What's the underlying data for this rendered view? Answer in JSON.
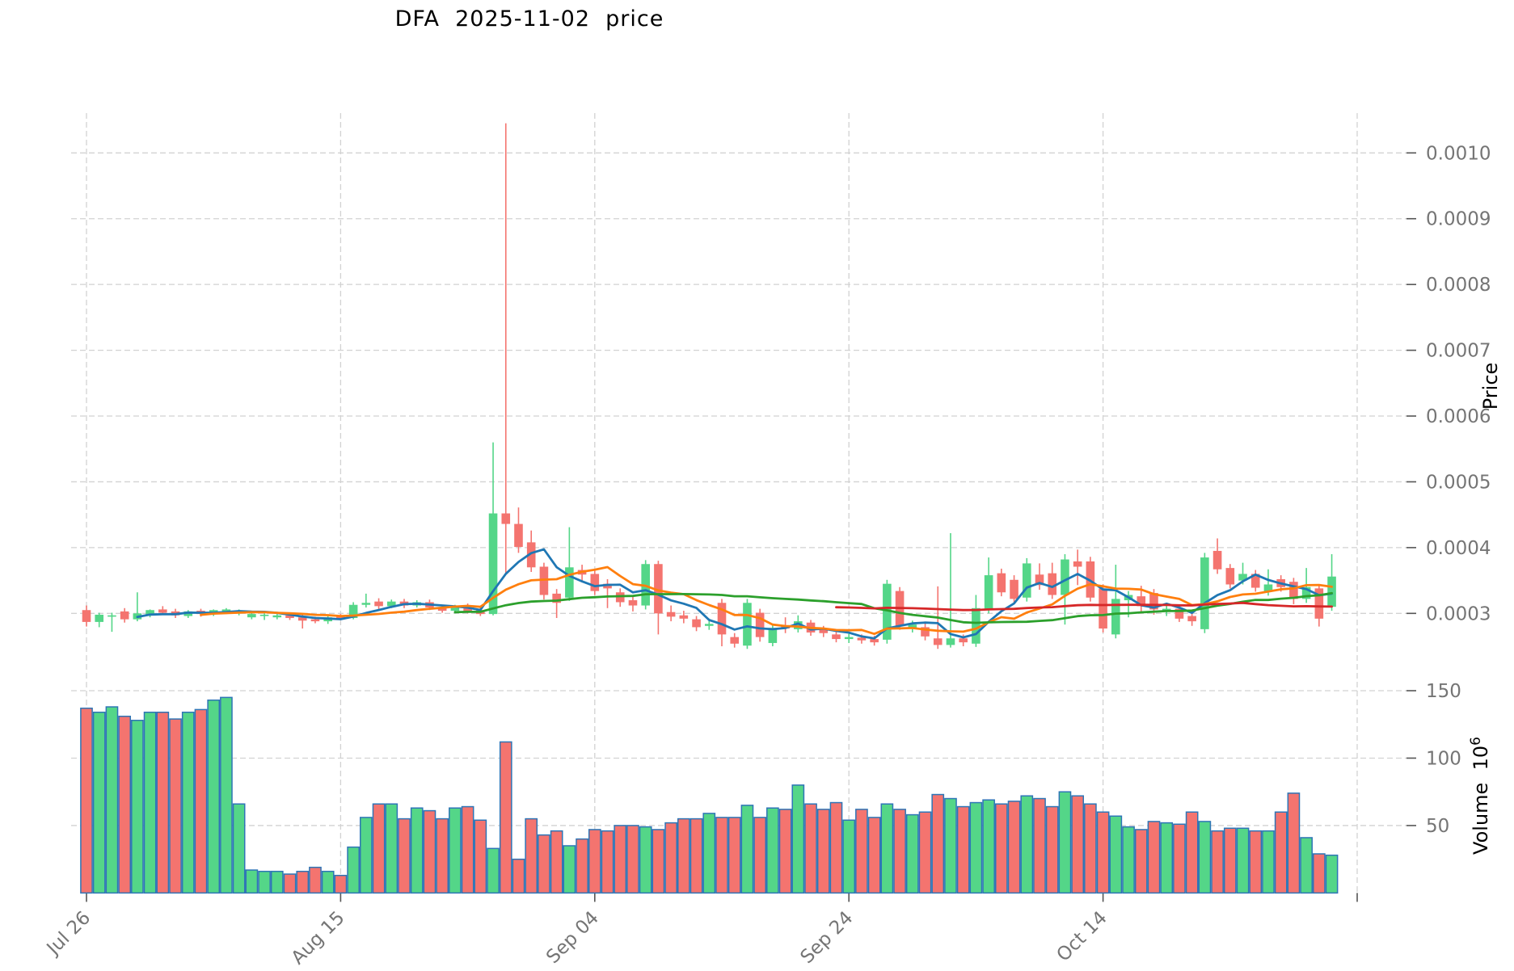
{
  "title": "DFA  2025-11-02  price",
  "axes": {
    "price": {
      "label": "Price",
      "tick_labels": [
        "0.0003",
        "0.0004",
        "0.0005",
        "0.0006",
        "0.0007",
        "0.0008",
        "0.0009",
        "0.0010"
      ]
    },
    "volume": {
      "label": "Volume",
      "unit_base": "10",
      "unit_exponent": "6",
      "tick_labels": [
        "50",
        "100",
        "150"
      ]
    },
    "x": {
      "ticks": [
        {
          "label": "Jul 26",
          "day": 0
        },
        {
          "label": "Aug 15",
          "day": 20
        },
        {
          "label": "Sep 04",
          "day": 40
        },
        {
          "label": "Sep 24",
          "day": 60
        },
        {
          "label": "Oct 14",
          "day": 80
        },
        {
          "label": "",
          "day": 100
        }
      ]
    }
  },
  "chart_data": {
    "type": "candlestick",
    "title": "DFA  2025-11-02  price",
    "legend_position": "none",
    "grid": "dashed",
    "price_ylim": [
      0.000235,
      0.00106
    ],
    "price_tick_values": [
      0.0003,
      0.0004,
      0.0005,
      0.0006,
      0.0007,
      0.0008,
      0.0009,
      0.001
    ],
    "volume_ylim_millions": [
      0,
      165
    ],
    "volume_tick_values_millions": [
      50,
      100,
      150
    ],
    "moving_averages": [
      {
        "window": 5,
        "color": "#1f77b4"
      },
      {
        "window": 10,
        "color": "#ff7f0e"
      },
      {
        "window": 30,
        "color": "#2ca02c"
      },
      {
        "window": 60,
        "color": "#d62728"
      }
    ],
    "colors": {
      "up": "#54d688",
      "down": "#f4746f",
      "volume_edge": "#2e75b6",
      "grid": "#d2d2d2",
      "tick_text": "#757575",
      "axis_tick_mark": "#555555",
      "title_text": "#000000"
    },
    "columns": [
      "date",
      "open",
      "high",
      "low",
      "close",
      "volume_millions"
    ],
    "candles": [
      [
        "2025-07-26",
        0.000305,
        0.000312,
        0.00028,
        0.000287,
        137
      ],
      [
        "2025-07-27",
        0.000287,
        0.000301,
        0.000279,
        0.000298,
        134
      ],
      [
        "2025-07-28",
        0.000295,
        0.000301,
        0.000272,
        0.000297,
        138
      ],
      [
        "2025-07-29",
        0.000303,
        0.000308,
        0.000286,
        0.000291,
        131
      ],
      [
        "2025-07-30",
        0.000291,
        0.000332,
        0.000288,
        0.0003,
        128
      ],
      [
        "2025-07-31",
        0.000298,
        0.000306,
        0.000294,
        0.000305,
        134
      ],
      [
        "2025-08-01",
        0.000306,
        0.000311,
        0.000298,
        0.000301,
        134
      ],
      [
        "2025-08-02",
        0.000303,
        0.000307,
        0.000293,
        0.000297,
        129
      ],
      [
        "2025-08-03",
        0.000296,
        0.000305,
        0.000293,
        0.000303,
        134
      ],
      [
        "2025-08-04",
        0.000304,
        0.000307,
        0.000295,
        0.000299,
        136
      ],
      [
        "2025-08-05",
        0.000299,
        0.000306,
        0.000296,
        0.000305,
        143
      ],
      [
        "2025-08-06",
        0.000303,
        0.000308,
        0.000299,
        0.000306,
        145
      ],
      [
        "2025-08-07",
        0.000302,
        0.000306,
        0.000297,
        0.000304,
        66
      ],
      [
        "2025-08-08",
        0.000294,
        0.000303,
        0.000291,
        0.000299,
        17
      ],
      [
        "2025-08-09",
        0.000296,
        0.000301,
        0.00029,
        0.000298,
        16
      ],
      [
        "2025-08-10",
        0.000294,
        0.000299,
        0.000291,
        0.000297,
        16
      ],
      [
        "2025-08-11",
        0.000297,
        0.000301,
        0.00029,
        0.000293,
        14
      ],
      [
        "2025-08-12",
        0.000294,
        0.000298,
        0.000277,
        0.000289,
        16
      ],
      [
        "2025-08-13",
        0.000291,
        0.000295,
        0.000285,
        0.000288,
        19
      ],
      [
        "2025-08-14",
        0.000288,
        0.000296,
        0.000284,
        0.000294,
        16
      ],
      [
        "2025-08-15",
        0.000295,
        0.000299,
        0.00029,
        0.000292,
        13
      ],
      [
        "2025-08-16",
        0.000293,
        0.000317,
        0.000291,
        0.000313,
        34
      ],
      [
        "2025-08-17",
        0.000313,
        0.00033,
        0.000309,
        0.000316,
        56
      ],
      [
        "2025-08-18",
        0.000318,
        0.000323,
        0.000306,
        0.000311,
        66
      ],
      [
        "2025-08-19",
        0.000311,
        0.000321,
        0.000308,
        0.000318,
        66
      ],
      [
        "2025-08-20",
        0.000318,
        0.000322,
        0.000308,
        0.000312,
        55
      ],
      [
        "2025-08-21",
        0.000312,
        0.00032,
        0.000309,
        0.000317,
        63
      ],
      [
        "2025-08-22",
        0.000317,
        0.000321,
        0.000305,
        0.000309,
        61
      ],
      [
        "2025-08-23",
        0.000309,
        0.000313,
        0.000301,
        0.000304,
        55
      ],
      [
        "2025-08-24",
        0.000304,
        0.000313,
        0.0003,
        0.000311,
        63
      ],
      [
        "2025-08-25",
        0.000311,
        0.000315,
        0.0003,
        0.000303,
        64
      ],
      [
        "2025-08-26",
        0.000305,
        0.000309,
        0.000296,
        0.000299,
        54
      ],
      [
        "2025-08-27",
        0.000299,
        0.00056,
        0.000297,
        0.000452,
        33
      ],
      [
        "2025-08-28",
        0.000452,
        0.001045,
        0.00036,
        0.000436,
        112
      ],
      [
        "2025-08-29",
        0.000436,
        0.000461,
        0.000392,
        0.000401,
        25
      ],
      [
        "2025-08-30",
        0.000408,
        0.000426,
        0.000363,
        0.00037,
        55
      ],
      [
        "2025-08-31",
        0.000371,
        0.000377,
        0.000321,
        0.000328,
        43
      ],
      [
        "2025-09-01",
        0.00033,
        0.000337,
        0.000293,
        0.000316,
        46
      ],
      [
        "2025-09-02",
        0.000324,
        0.000431,
        0.000319,
        0.00037,
        35
      ],
      [
        "2025-09-03",
        0.000366,
        0.000374,
        0.000348,
        0.000359,
        40
      ],
      [
        "2025-09-04",
        0.00036,
        0.000366,
        0.000328,
        0.000334,
        47
      ],
      [
        "2025-09-05",
        0.000345,
        0.000352,
        0.000308,
        0.000338,
        46
      ],
      [
        "2025-09-06",
        0.000332,
        0.000338,
        0.00031,
        0.000317,
        50
      ],
      [
        "2025-09-07",
        0.00032,
        0.000326,
        0.000303,
        0.000312,
        50
      ],
      [
        "2025-09-08",
        0.000312,
        0.000381,
        0.000306,
        0.000375,
        49
      ],
      [
        "2025-09-09",
        0.000375,
        0.00038,
        0.000268,
        0.0003,
        47
      ],
      [
        "2025-09-10",
        0.000302,
        0.000312,
        0.000288,
        0.000295,
        52
      ],
      [
        "2025-09-11",
        0.000297,
        0.000304,
        0.000285,
        0.000292,
        55
      ],
      [
        "2025-09-12",
        0.000291,
        0.000296,
        0.000273,
        0.000279,
        55
      ],
      [
        "2025-09-13",
        0.000281,
        0.000292,
        0.000275,
        0.000284,
        59
      ],
      [
        "2025-09-14",
        0.000316,
        0.000322,
        0.00025,
        0.000268,
        56
      ],
      [
        "2025-09-15",
        0.000264,
        0.00027,
        0.000248,
        0.000254,
        56
      ],
      [
        "2025-09-16",
        0.000251,
        0.000322,
        0.000246,
        0.000316,
        65
      ],
      [
        "2025-09-17",
        0.000301,
        0.000307,
        0.000257,
        0.000264,
        56
      ],
      [
        "2025-09-18",
        0.000255,
        0.000284,
        0.00025,
        0.000278,
        63
      ],
      [
        "2025-09-19",
        0.000282,
        0.000294,
        0.00027,
        0.000277,
        62
      ],
      [
        "2025-09-20",
        0.000276,
        0.000297,
        0.000271,
        0.000288,
        80
      ],
      [
        "2025-09-21",
        0.000286,
        0.00029,
        0.000266,
        0.000271,
        66
      ],
      [
        "2025-09-22",
        0.000276,
        0.000281,
        0.000264,
        0.00027,
        62
      ],
      [
        "2025-09-23",
        0.000268,
        0.000273,
        0.000256,
        0.000261,
        67
      ],
      [
        "2025-09-24",
        0.000261,
        0.000269,
        0.000255,
        0.000264,
        54
      ],
      [
        "2025-09-25",
        0.000263,
        0.000268,
        0.000254,
        0.000259,
        62
      ],
      [
        "2025-09-26",
        0.000261,
        0.000266,
        0.000251,
        0.000256,
        56
      ],
      [
        "2025-09-27",
        0.00026,
        0.000351,
        0.000254,
        0.000345,
        66
      ],
      [
        "2025-09-28",
        0.000334,
        0.00034,
        0.000275,
        0.000281,
        62
      ],
      [
        "2025-09-29",
        0.000277,
        0.000289,
        0.000271,
        0.000283,
        58
      ],
      [
        "2025-09-30",
        0.000279,
        0.000285,
        0.000259,
        0.000265,
        60
      ],
      [
        "2025-10-01",
        0.000262,
        0.000341,
        0.000246,
        0.000252,
        73
      ],
      [
        "2025-10-02",
        0.000252,
        0.000422,
        0.000248,
        0.000262,
        70
      ],
      [
        "2025-10-03",
        0.000262,
        0.000268,
        0.00025,
        0.000256,
        64
      ],
      [
        "2025-10-04",
        0.000254,
        0.000328,
        0.000249,
        0.000308,
        67
      ],
      [
        "2025-10-05",
        0.000306,
        0.000385,
        0.0003,
        0.000358,
        69
      ],
      [
        "2025-10-06",
        0.000361,
        0.000368,
        0.000326,
        0.000332,
        66
      ],
      [
        "2025-10-07",
        0.000351,
        0.000358,
        0.000316,
        0.000322,
        68
      ],
      [
        "2025-10-08",
        0.000324,
        0.000384,
        0.000318,
        0.000376,
        72
      ],
      [
        "2025-10-09",
        0.000359,
        0.000376,
        0.000336,
        0.000343,
        70
      ],
      [
        "2025-10-10",
        0.000361,
        0.000377,
        0.000322,
        0.000328,
        64
      ],
      [
        "2025-10-11",
        0.000328,
        0.00039,
        0.000283,
        0.000382,
        75
      ],
      [
        "2025-10-12",
        0.000379,
        0.000397,
        0.000343,
        0.000371,
        72
      ],
      [
        "2025-10-13",
        0.000379,
        0.000386,
        0.000318,
        0.000324,
        66
      ],
      [
        "2025-10-14",
        0.000338,
        0.000344,
        0.000271,
        0.000277,
        60
      ],
      [
        "2025-10-15",
        0.000268,
        0.000374,
        0.000262,
        0.000322,
        57
      ],
      [
        "2025-10-16",
        0.00032,
        0.000334,
        0.000294,
        0.000328,
        49
      ],
      [
        "2025-10-17",
        0.000326,
        0.000342,
        0.0003,
        0.000311,
        47
      ],
      [
        "2025-10-18",
        0.000331,
        0.000337,
        0.000298,
        0.000306,
        53
      ],
      [
        "2025-10-19",
        0.000303,
        0.000313,
        0.000296,
        0.000307,
        52
      ],
      [
        "2025-10-20",
        0.000307,
        0.000313,
        0.000287,
        0.000292,
        51
      ],
      [
        "2025-10-21",
        0.000296,
        0.000302,
        0.000281,
        0.000288,
        60
      ],
      [
        "2025-10-22",
        0.000276,
        0.000392,
        0.00027,
        0.000385,
        53
      ],
      [
        "2025-10-23",
        0.000395,
        0.000414,
        0.00036,
        0.000367,
        46
      ],
      [
        "2025-10-24",
        0.000369,
        0.000375,
        0.000338,
        0.000344,
        48
      ],
      [
        "2025-10-25",
        0.00035,
        0.000377,
        0.000344,
        0.00036,
        48
      ],
      [
        "2025-10-26",
        0.00036,
        0.000366,
        0.000333,
        0.000339,
        46
      ],
      [
        "2025-10-27",
        0.000333,
        0.000367,
        0.000327,
        0.000344,
        46
      ],
      [
        "2025-10-28",
        0.000352,
        0.000358,
        0.000333,
        0.00034,
        60
      ],
      [
        "2025-10-29",
        0.000348,
        0.000354,
        0.000314,
        0.000322,
        74
      ],
      [
        "2025-10-30",
        0.000322,
        0.000369,
        0.000316,
        0.00034,
        41
      ],
      [
        "2025-10-31",
        0.000338,
        0.000344,
        0.00028,
        0.000292,
        29
      ],
      [
        "2025-11-01",
        0.00031,
        0.00039,
        0.000304,
        0.000356,
        28
      ]
    ]
  }
}
